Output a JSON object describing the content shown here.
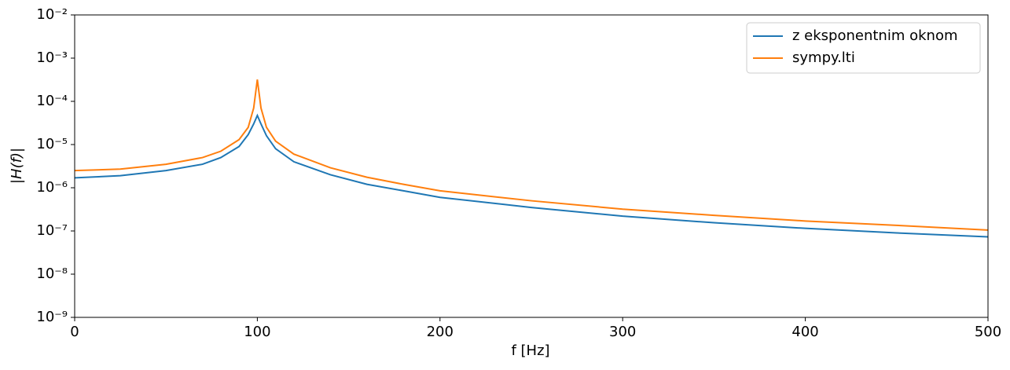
{
  "chart_data": {
    "type": "line",
    "xlabel": "f [Hz]",
    "ylabel": "|H(f)|",
    "x": [
      0,
      25,
      50,
      70,
      80,
      90,
      95,
      98,
      100,
      102,
      105,
      110,
      120,
      140,
      160,
      180,
      200,
      250,
      300,
      350,
      400,
      450,
      500
    ],
    "series": [
      {
        "name": "z eksponentnim oknom",
        "color": "#1f77b4",
        "values": [
          1.7e-06,
          1.9e-06,
          2.5e-06,
          3.5e-06,
          5e-06,
          9e-06,
          1.7e-05,
          3e-05,
          4.7e-05,
          3e-05,
          1.6e-05,
          8e-06,
          4e-06,
          2e-06,
          1.2e-06,
          8.5e-07,
          6e-07,
          3.5e-07,
          2.2e-07,
          1.55e-07,
          1.15e-07,
          9e-08,
          7.3e-08
        ]
      },
      {
        "name": "sympy.lti",
        "color": "#ff7f0e",
        "values": [
          2.5e-06,
          2.7e-06,
          3.5e-06,
          5e-06,
          7e-06,
          1.3e-05,
          2.5e-05,
          7e-05,
          0.00032,
          7e-05,
          2.5e-05,
          1.2e-05,
          6e-06,
          2.9e-06,
          1.75e-06,
          1.2e-06,
          8.5e-07,
          5e-07,
          3.2e-07,
          2.3e-07,
          1.7e-07,
          1.35e-07,
          1.05e-07
        ]
      }
    ],
    "xlim": [
      0,
      500
    ],
    "xticks": [
      0,
      100,
      200,
      300,
      400,
      500
    ],
    "ylim": [
      1e-09,
      0.01
    ],
    "log_y": true,
    "yticks": [
      {
        "value": 1e-09,
        "label": "10⁻⁹"
      },
      {
        "value": 1e-08,
        "label": "10⁻⁸"
      },
      {
        "value": 1e-07,
        "label": "10⁻⁷"
      },
      {
        "value": 1e-06,
        "label": "10⁻⁶"
      },
      {
        "value": 1e-05,
        "label": "10⁻⁵"
      },
      {
        "value": 0.0001,
        "label": "10⁻⁴"
      },
      {
        "value": 0.001,
        "label": "10⁻³"
      },
      {
        "value": 0.01,
        "label": "10⁻²"
      }
    ],
    "legend": "upper right",
    "grid": false
  }
}
